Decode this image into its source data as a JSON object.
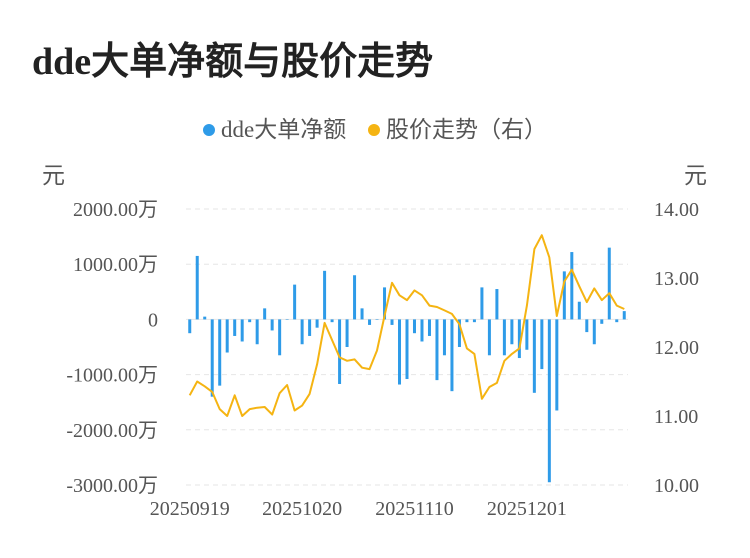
{
  "title": "dde大单净额与股价走势",
  "legend": {
    "series1": "dde大单净额",
    "series2": "股价走势（右）"
  },
  "units": {
    "left": "元",
    "right": "元"
  },
  "colors": {
    "bar": "#2e9be8",
    "line": "#f5b412",
    "grid": "#e6e6e6",
    "text": "#555555"
  },
  "chart_data": {
    "type": "bar",
    "x_tick_labels": [
      "20250919",
      "20251020",
      "20251110",
      "20251201"
    ],
    "y_left_ticks": [
      "2000.00万",
      "1000.00万",
      "0",
      "-1000.00万",
      "-2000.00万",
      "-3000.00万"
    ],
    "y_right_ticks": [
      "14.00",
      "13.00",
      "12.00",
      "11.00",
      "10.00"
    ],
    "y_left_lim": [
      -3000,
      2000
    ],
    "y_right_lim": [
      10,
      14
    ],
    "grid": true,
    "legend_position": "top",
    "series": [
      {
        "name": "dde大单净额",
        "type": "bar",
        "axis": "left",
        "values": [
          -250,
          1150,
          50,
          -1400,
          -1200,
          -600,
          -300,
          -400,
          -50,
          -450,
          200,
          -200,
          -650,
          0,
          630,
          -450,
          -300,
          -150,
          880,
          -50,
          -1170,
          -500,
          800,
          200,
          -100,
          0,
          580,
          -100,
          -1180,
          -1080,
          -250,
          -400,
          -300,
          -1100,
          -650,
          -1300,
          -500,
          -50,
          -50,
          580,
          -650,
          550,
          -650,
          -450,
          -700,
          -550,
          -1330,
          -900,
          -2950,
          -1650,
          870,
          1220,
          320,
          -230,
          -450,
          -80,
          1300,
          -50,
          150
        ]
      },
      {
        "name": "股价走势（右）",
        "type": "line",
        "axis": "right",
        "values": [
          11.3,
          11.5,
          11.43,
          11.35,
          11.1,
          11.0,
          11.3,
          11.0,
          11.1,
          11.12,
          11.13,
          11.02,
          11.33,
          11.45,
          11.08,
          11.15,
          11.32,
          11.75,
          12.35,
          12.1,
          11.85,
          11.8,
          11.82,
          11.7,
          11.68,
          11.95,
          12.45,
          12.93,
          12.75,
          12.68,
          12.82,
          12.75,
          12.6,
          12.58,
          12.53,
          12.48,
          12.33,
          11.98,
          11.9,
          11.25,
          11.42,
          11.48,
          11.8,
          11.9,
          11.98,
          12.6,
          13.42,
          13.62,
          13.3,
          12.45,
          12.95,
          13.12,
          12.88,
          12.65,
          12.85,
          12.68,
          12.78,
          12.6,
          12.55
        ]
      }
    ]
  }
}
